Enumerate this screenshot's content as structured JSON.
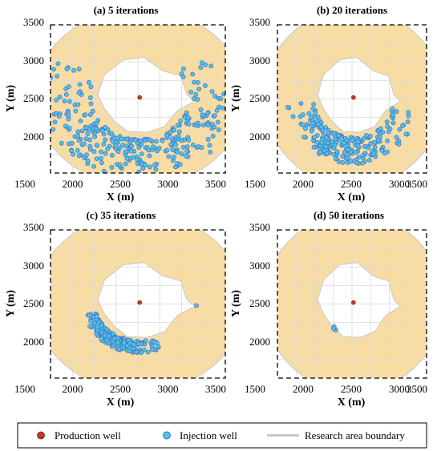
{
  "chart_data": [
    {
      "type": "scatter",
      "title": "(a)   5 iterations",
      "xlabel": "X (m)",
      "ylabel": "Y (m)",
      "xlim": [
        1500,
        3500
      ],
      "ylim": [
        1500,
        3500
      ],
      "xticks": [
        1500,
        2000,
        2500,
        3000,
        3500
      ],
      "yticks": [
        2000,
        2500,
        3000,
        3500
      ],
      "grid": true,
      "production_well": [
        2520,
        2520
      ],
      "injection_wells": {
        "seed": 101,
        "count": 310,
        "pattern": "broad scatter over the whole annulus, densest south of the well",
        "r_range": [
          560,
          1100
        ],
        "angle_range_deg": [
          150,
          400
        ],
        "bias_angle_deg": 265,
        "bias": 0.55
      }
    },
    {
      "type": "scatter",
      "title": "(b) 20 iterations",
      "xlabel": "X (m)",
      "ylabel": "Y (m)",
      "xlim": [
        1500,
        3500
      ],
      "ylim": [
        1500,
        3500
      ],
      "xticks": [
        1500,
        2000,
        2500,
        3000,
        3500
      ],
      "yticks": [
        2000,
        2500,
        3000,
        3500
      ],
      "grid": true,
      "production_well": [
        2520,
        2520
      ],
      "injection_wells": {
        "seed": 202,
        "count": 230,
        "pattern": "band south and south-west of the excluded zone",
        "r_range": [
          540,
          900
        ],
        "angle_range_deg": [
          185,
          345
        ],
        "bias_angle_deg": 255,
        "bias": 0.6
      }
    },
    {
      "type": "scatter",
      "title": "(c) 35 iterations",
      "xlabel": "X (m)",
      "ylabel": "Y (m)",
      "xlim": [
        1500,
        3500
      ],
      "ylim": [
        1500,
        3500
      ],
      "xticks": [
        1500,
        2000,
        2500,
        3000,
        3500
      ],
      "yticks": [
        2000,
        2500,
        3000,
        3500
      ],
      "grid": true,
      "production_well": [
        2520,
        2520
      ],
      "injection_wells": {
        "seed": 303,
        "count": 200,
        "pattern": "tight crescent hugging the south-west edge of the excluded zone",
        "r_range": [
          520,
          680
        ],
        "angle_range_deg": [
          195,
          290
        ],
        "bias_angle_deg": 240,
        "bias": 0.5,
        "extra_points": [
          [
            3170,
            2480
          ]
        ]
      }
    },
    {
      "type": "scatter",
      "title": "(d) 50 iterations",
      "xlabel": "X (m)",
      "ylabel": "Y (m)",
      "xlim": [
        1500,
        3500
      ],
      "ylim": [
        1500,
        3500
      ],
      "xticks": [
        1500,
        2000,
        2500,
        3000,
        3500
      ],
      "yticks": [
        2000,
        2500,
        3000,
        3500
      ],
      "grid": true,
      "production_well": [
        2520,
        2520
      ],
      "injection_wells": {
        "seed": 404,
        "count": 6,
        "pattern": "small cluster at the south-west boundary of the excluded zone",
        "points": [
          [
            2255,
            2180
          ],
          [
            2265,
            2165
          ],
          [
            2275,
            2155
          ],
          [
            2260,
            2195
          ],
          [
            2285,
            2150
          ],
          [
            2250,
            2170
          ]
        ]
      }
    }
  ],
  "research_area": {
    "center": [
      2520,
      2520
    ],
    "radius": 1200,
    "excluded_zone": [
      [
        2340,
        3030
      ],
      [
        2120,
        2830
      ],
      [
        2040,
        2560
      ],
      [
        2110,
        2380
      ],
      [
        2230,
        2200
      ],
      [
        2380,
        2060
      ],
      [
        2610,
        2050
      ],
      [
        2810,
        2130
      ],
      [
        2890,
        2260
      ],
      [
        2960,
        2350
      ],
      [
        3150,
        2470
      ],
      [
        3060,
        2560
      ],
      [
        2990,
        2810
      ],
      [
        2780,
        2880
      ],
      [
        2570,
        3060
      ]
    ]
  },
  "legend": {
    "items": [
      {
        "label": "Production well",
        "marker": "dot",
        "color": "#c0392b"
      },
      {
        "label": "Injection well",
        "marker": "circle",
        "color": "#4cc3e8"
      },
      {
        "label": "Research area boundary",
        "marker": "line",
        "color": "#c8c8c8"
      }
    ]
  },
  "colors": {
    "annulus": "#f7dca4",
    "boundary": "#c8c8c8",
    "grid": "#d9d9d9",
    "injection_fill": "#4cc3e8",
    "injection_edge": "#4a63b8",
    "production": "#c0392b"
  }
}
